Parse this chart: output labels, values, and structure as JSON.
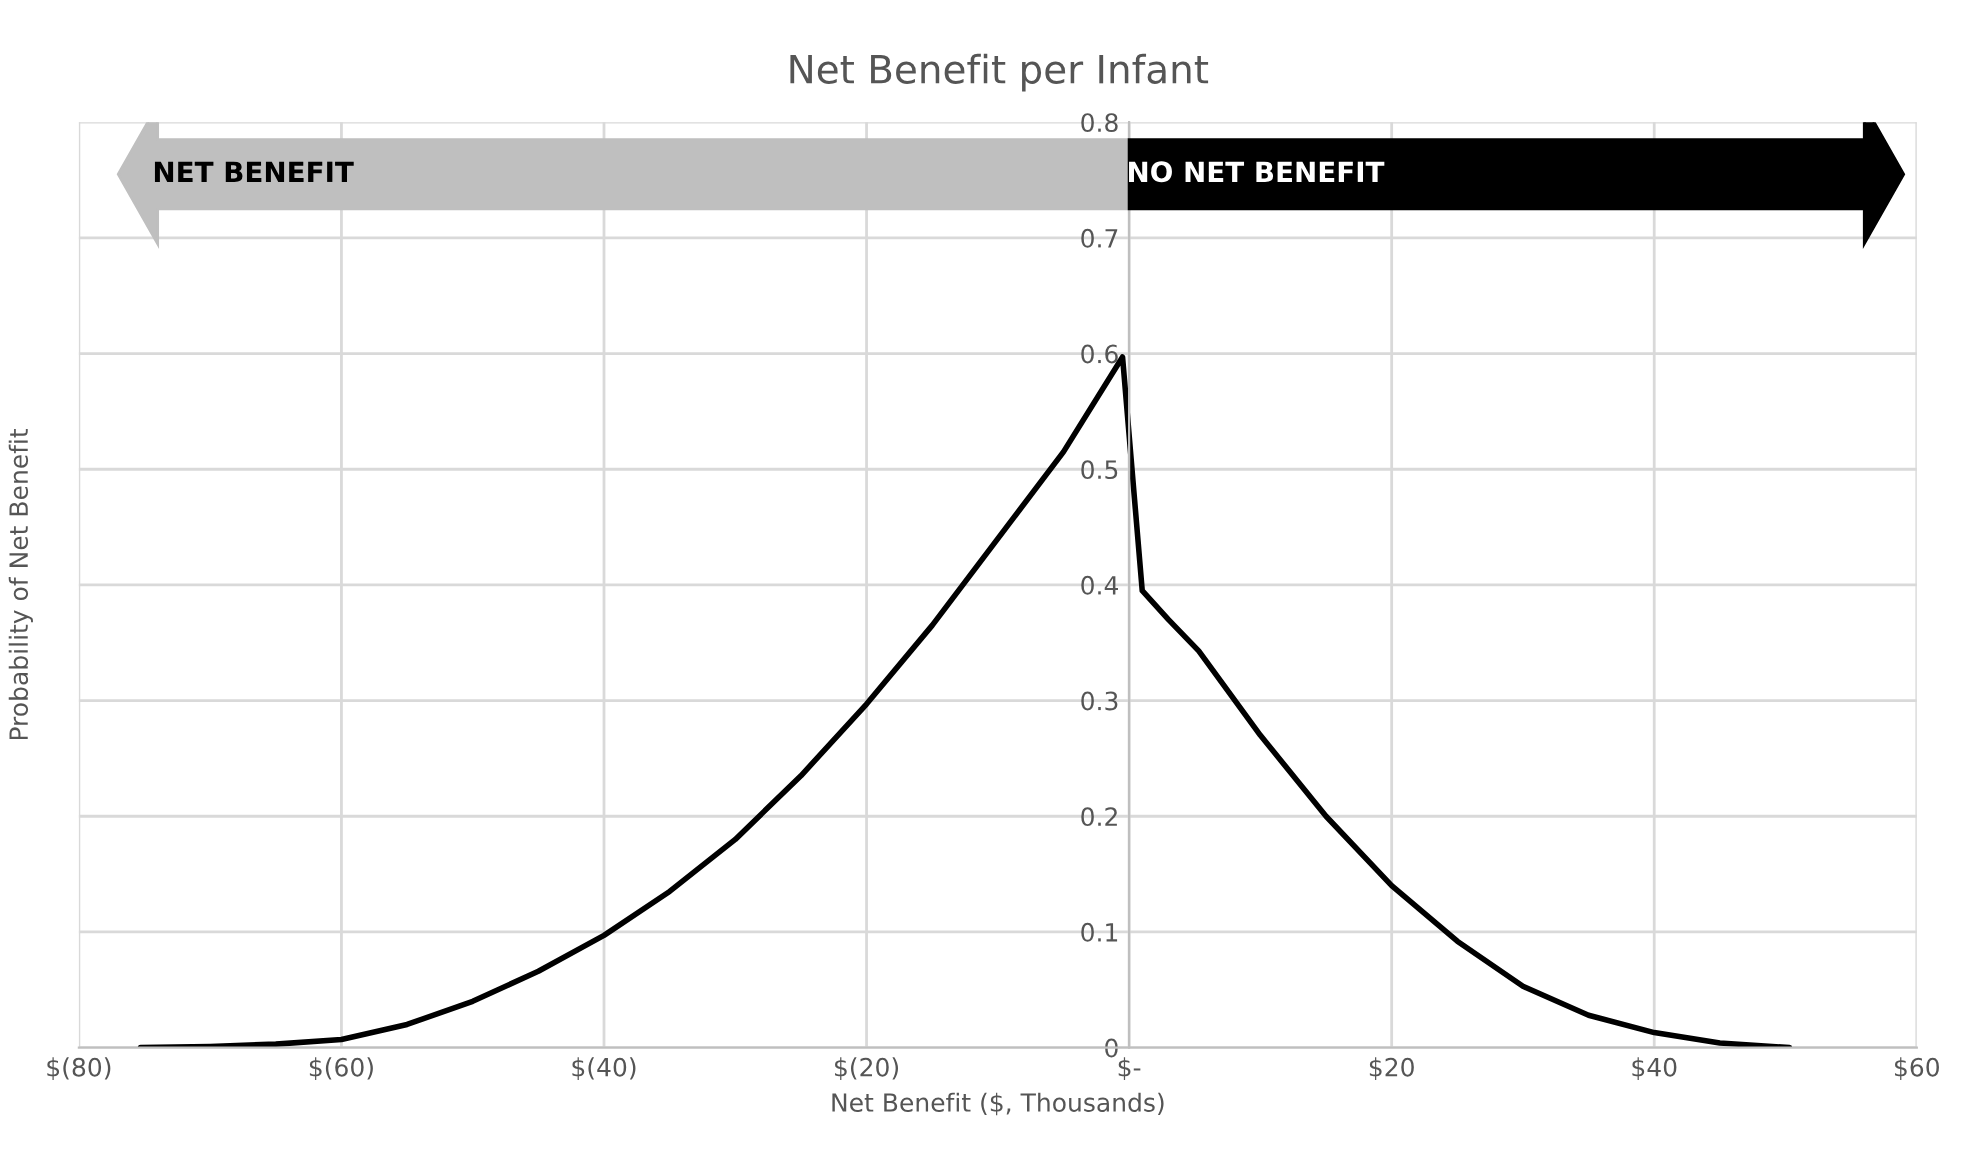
{
  "chart_data": {
    "type": "line",
    "title": "Net Benefit per Infant",
    "xlabel": "Net Benefit ($, Thousands)",
    "ylabel": "Probability of Net Benefit",
    "annotations": [
      "NET BENEFIT",
      "NO NET BENEFIT"
    ],
    "series": [
      {
        "color": "#000000",
        "x": [
          -75.3,
          -70,
          -65,
          -60,
          -55,
          -50,
          -45,
          -40,
          -35,
          -30,
          -25,
          -20,
          -15,
          -10,
          -5,
          -0.5,
          1,
          3,
          5.3,
          10,
          15,
          20,
          25,
          30,
          35,
          40,
          45,
          50.3
        ],
        "values": [
          0,
          0.001,
          0.003,
          0.007,
          0.02,
          0.04,
          0.066,
          0.097,
          0.135,
          0.18,
          0.235,
          0.297,
          0.365,
          0.44,
          0.515,
          0.597,
          0.395,
          0.37,
          0.343,
          0.27,
          0.2,
          0.14,
          0.092,
          0.053,
          0.028,
          0.013,
          0.004,
          0
        ]
      }
    ],
    "xlim": [
      -80,
      60
    ],
    "xticks": [
      {
        "value": -80,
        "label": "$(80)"
      },
      {
        "value": -60,
        "label": "$(60)"
      },
      {
        "value": -40,
        "label": "$(40)"
      },
      {
        "value": -20,
        "label": "$(20)"
      },
      {
        "value": 0,
        "label": "$-"
      },
      {
        "value": 20,
        "label": "$20"
      },
      {
        "value": 40,
        "label": "$40"
      },
      {
        "value": 60,
        "label": "$60"
      }
    ],
    "ylim": [
      0,
      0.8
    ],
    "yticks": [
      0,
      0.1,
      0.2,
      0.3,
      0.4,
      0.5,
      0.6,
      0.7,
      0.8
    ],
    "grid": true,
    "line_style": "solid",
    "marker": "none"
  }
}
